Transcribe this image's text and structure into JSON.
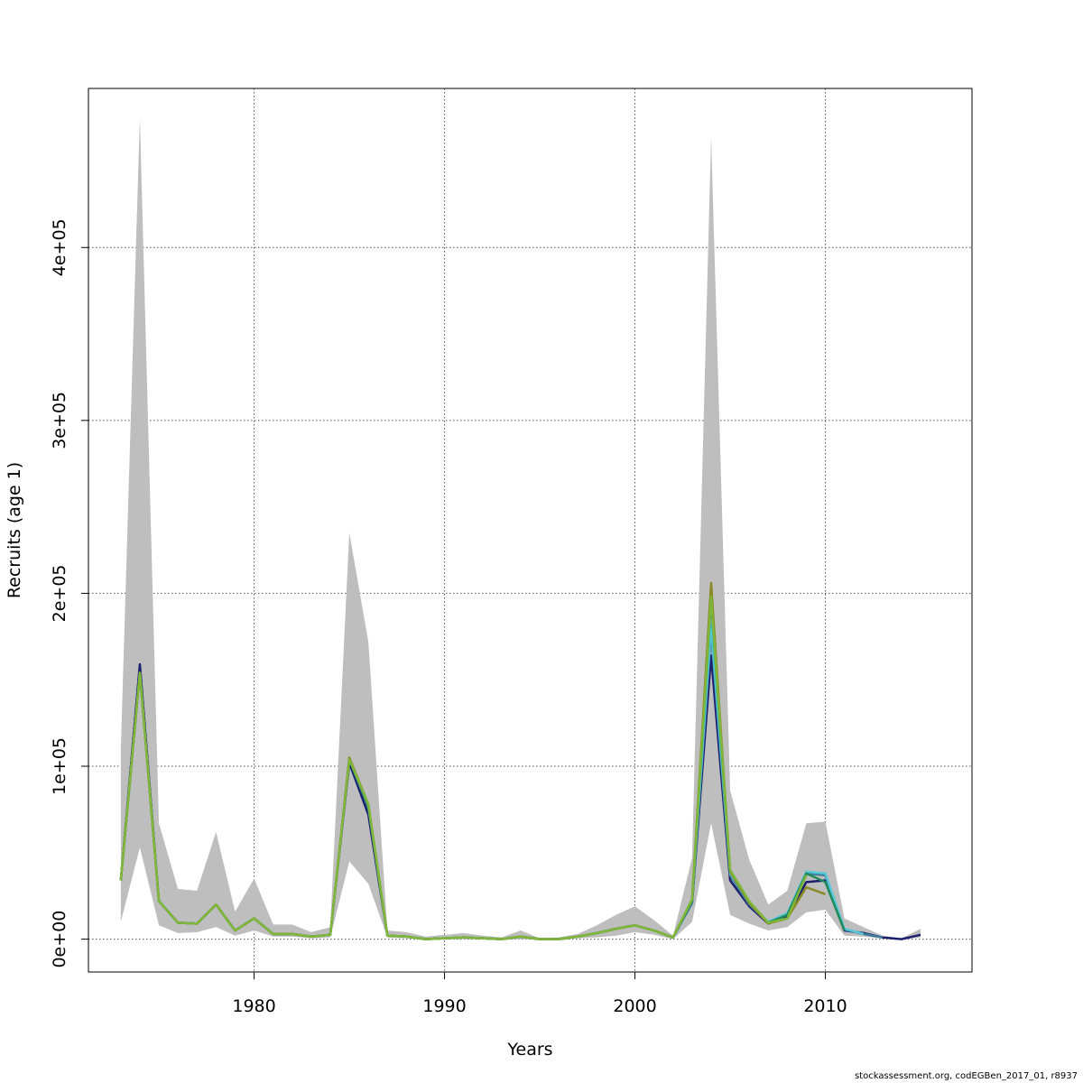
{
  "chart_data": {
    "type": "line",
    "xlabel": "Years",
    "ylabel": "Recruits (age 1)",
    "xlim": [
      1971.3,
      2017.7
    ],
    "ylim": [
      -19000,
      492000
    ],
    "x_ticks": [
      1980,
      1990,
      2000,
      2010
    ],
    "x_tick_labels": [
      "1980",
      "1990",
      "2000",
      "2010"
    ],
    "y_ticks": [
      0,
      100000,
      200000,
      300000,
      400000
    ],
    "y_tick_labels": [
      "0e+00",
      "1e+05",
      "2e+05",
      "3e+05",
      "4e+05"
    ],
    "grid": true,
    "band": {
      "color": "#bebebe",
      "x": [
        1973,
        1974,
        1975,
        1976,
        1977,
        1978,
        1979,
        1980,
        1981,
        1982,
        1983,
        1984,
        1985,
        1986,
        1987,
        1988,
        1989,
        1990,
        1991,
        1992,
        1993,
        1994,
        1995,
        1996,
        1997,
        1998,
        1999,
        2000,
        2001,
        2002,
        2003,
        2004,
        2005,
        2006,
        2007,
        2008,
        2009,
        2010,
        2011,
        2012,
        2013,
        2014,
        2015
      ],
      "upper": [
        110000,
        475000,
        67000,
        29000,
        28000,
        62000,
        16000,
        35000,
        8500,
        8500,
        4000,
        7000,
        235000,
        172000,
        5000,
        4000,
        1500,
        2500,
        3500,
        2000,
        1000,
        5000,
        500,
        1000,
        3000,
        8000,
        14000,
        19000,
        11000,
        2000,
        47000,
        464000,
        86000,
        46000,
        20000,
        28000,
        67000,
        68000,
        12000,
        7000,
        2000,
        500,
        6000
      ],
      "lower": [
        10000,
        53000,
        8000,
        3500,
        4000,
        7000,
        2000,
        5000,
        1500,
        1500,
        500,
        1000,
        45000,
        32000,
        1000,
        500,
        0,
        0,
        0,
        0,
        0,
        0,
        0,
        0,
        500,
        1000,
        2000,
        4000,
        2500,
        0,
        10000,
        67000,
        14000,
        9000,
        5000,
        7000,
        15500,
        17000,
        2000,
        1500,
        300,
        0,
        1000
      ]
    },
    "series": [
      {
        "color": "#1c1f6e",
        "x": [
          1973,
          1974,
          1975,
          1976,
          1977,
          1978,
          1979,
          1980,
          1981,
          1982,
          1983,
          1984,
          1985,
          1986,
          1987,
          1988,
          1989,
          1990,
          1991,
          1992,
          1993,
          1994,
          1995,
          1996,
          1997,
          1998,
          1999,
          2000,
          2001,
          2002,
          2003,
          2004,
          2005,
          2006,
          2007,
          2008,
          2009,
          2010,
          2011,
          2012,
          2013,
          2014,
          2015
        ],
        "values": [
          34000,
          159000,
          22000,
          9500,
          9000,
          20000,
          5000,
          12000,
          3000,
          3000,
          1500,
          2500,
          102000,
          72000,
          2000,
          1500,
          0,
          500,
          1000,
          500,
          0,
          1500,
          0,
          0,
          1500,
          3500,
          6000,
          8000,
          5000,
          1000,
          21000,
          164000,
          34000,
          19000,
          9000,
          13000,
          33000,
          34000,
          5000,
          3500,
          1000,
          0,
          2500
        ]
      },
      {
        "color": "#3a7a9c",
        "x": [
          1973,
          1974,
          1975,
          1976,
          1977,
          1978,
          1979,
          1980,
          1981,
          1982,
          1983,
          1984,
          1985,
          1986,
          1987,
          1988,
          1989,
          1990,
          1991,
          1992,
          1993,
          1994,
          1995,
          1996,
          1997,
          1998,
          1999,
          2000,
          2001,
          2002,
          2003,
          2004,
          2005,
          2006,
          2007,
          2008,
          2009,
          2010,
          2011,
          2012,
          2013
        ],
        "values": [
          34000,
          154000,
          22000,
          9500,
          9000,
          20000,
          5000,
          12000,
          3000,
          3000,
          1500,
          2500,
          104000,
          76000,
          2000,
          1500,
          0,
          500,
          1000,
          500,
          0,
          1500,
          0,
          0,
          1500,
          3500,
          6000,
          8000,
          5000,
          1000,
          21000,
          178000,
          37000,
          20000,
          9500,
          14000,
          38000,
          37000,
          5500,
          3000,
          1000
        ]
      },
      {
        "color": "#55c8d8",
        "x": [
          1973,
          1974,
          1975,
          1976,
          1977,
          1978,
          1979,
          1980,
          1981,
          1982,
          1983,
          1984,
          1985,
          1986,
          1987,
          1988,
          1989,
          1990,
          1991,
          1992,
          1993,
          1994,
          1995,
          1996,
          1997,
          1998,
          1999,
          2000,
          2001,
          2002,
          2003,
          2004,
          2005,
          2006,
          2007,
          2008,
          2009,
          2010,
          2011,
          2012
        ],
        "values": [
          34000,
          154000,
          22000,
          9500,
          9000,
          20000,
          5000,
          12000,
          3000,
          3000,
          1500,
          2500,
          104000,
          77000,
          2000,
          1500,
          0,
          500,
          1000,
          500,
          0,
          1500,
          0,
          0,
          1500,
          3500,
          6000,
          8000,
          5000,
          1000,
          22000,
          182000,
          38000,
          21000,
          10000,
          15000,
          39000,
          38000,
          6000,
          3000
        ]
      },
      {
        "color": "#1f8a5a",
        "x": [
          1973,
          1974,
          1975,
          1976,
          1977,
          1978,
          1979,
          1980,
          1981,
          1982,
          1983,
          1984,
          1985,
          1986,
          1987,
          1988,
          1989,
          1990,
          1991,
          1992,
          1993,
          1994,
          1995,
          1996,
          1997,
          1998,
          1999,
          2000,
          2001,
          2002,
          2003,
          2004,
          2005,
          2006,
          2007,
          2008,
          2009,
          2010,
          2011
        ],
        "values": [
          34000,
          154000,
          22000,
          9500,
          9000,
          20000,
          5000,
          12000,
          3000,
          3000,
          1500,
          2500,
          104000,
          77000,
          2000,
          1500,
          0,
          500,
          1000,
          500,
          0,
          1500,
          0,
          0,
          1500,
          3500,
          6000,
          8000,
          5000,
          1000,
          22000,
          196000,
          39000,
          21000,
          9500,
          14000,
          38000,
          33000,
          5000
        ]
      },
      {
        "color": "#8a8a26",
        "x": [
          1973,
          1974,
          1975,
          1976,
          1977,
          1978,
          1979,
          1980,
          1981,
          1982,
          1983,
          1984,
          1985,
          1986,
          1987,
          1988,
          1989,
          1990,
          1991,
          1992,
          1993,
          1994,
          1995,
          1996,
          1997,
          1998,
          1999,
          2000,
          2001,
          2002,
          2003,
          2004,
          2005,
          2006,
          2007,
          2008,
          2009,
          2010
        ],
        "values": [
          34000,
          154000,
          22000,
          9500,
          9000,
          20000,
          5000,
          12000,
          3000,
          3000,
          1500,
          2500,
          105000,
          78000,
          2000,
          1500,
          0,
          500,
          1000,
          500,
          0,
          1500,
          0,
          0,
          1500,
          3500,
          6000,
          8000,
          5000,
          1000,
          23000,
          206000,
          39000,
          21000,
          9000,
          12000,
          30000,
          26000
        ]
      },
      {
        "color": "#7fb73a",
        "x": [
          1973,
          1974,
          1975,
          1976,
          1977,
          1978,
          1979,
          1980,
          1981,
          1982,
          1983,
          1984,
          1985,
          1986,
          1987,
          1988,
          1989,
          1990,
          1991,
          1992,
          1993,
          1994,
          1995,
          1996,
          1997,
          1998,
          1999,
          2000,
          2001,
          2002,
          2003,
          2004,
          2005,
          2006,
          2007,
          2008,
          2009
        ],
        "values": [
          34000,
          154000,
          22000,
          9500,
          9000,
          20000,
          5000,
          12000,
          3000,
          3000,
          1500,
          2500,
          104000,
          78000,
          2000,
          1500,
          0,
          500,
          1000,
          500,
          0,
          1500,
          0,
          0,
          1500,
          3500,
          6000,
          8000,
          5000,
          1000,
          23000,
          198000,
          40000,
          22000,
          9500,
          12000,
          37000
        ]
      }
    ]
  },
  "footer": {
    "credit": "stockassessment.org, codEGBen_2017_01, r8937"
  }
}
